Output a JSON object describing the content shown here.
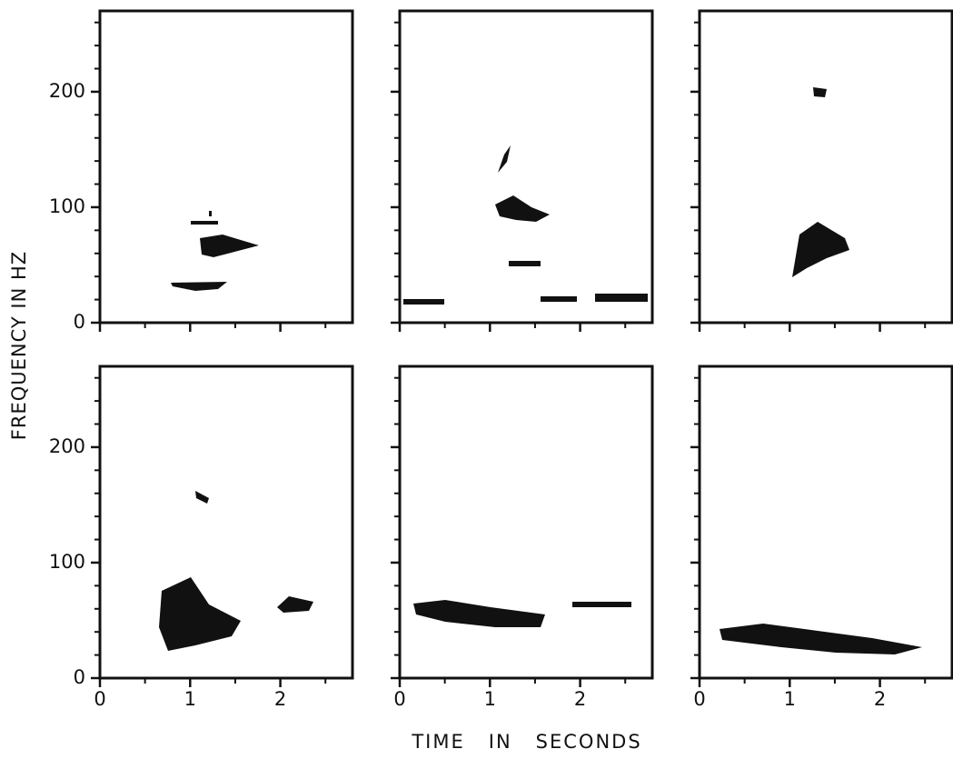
{
  "ylabel": "FREQUENCY IN HZ",
  "xlabel": "TIME   IN   SECONDS",
  "chart_data": [
    {
      "type": "spectrogram",
      "xlim": [
        0,
        2.8
      ],
      "ylim": [
        0,
        270
      ],
      "xticks": [
        0,
        1,
        2
      ],
      "yticks": [
        0,
        100,
        200
      ],
      "yminorticks": [
        20,
        40,
        60,
        80,
        120,
        140,
        160,
        180,
        220,
        240,
        260
      ],
      "xminorticks": [
        0.5,
        1.5,
        2.5
      ]
    },
    {
      "type": "spectrogram",
      "xlim": [
        0,
        2.8
      ],
      "ylim": [
        0,
        270
      ],
      "xticks": [
        0,
        1,
        2
      ],
      "yticks": [
        0,
        100,
        200
      ],
      "yminorticks": [
        20,
        40,
        60,
        80,
        120,
        140,
        160,
        180,
        220,
        240,
        260
      ],
      "xminorticks": [
        0.5,
        1.5,
        2.5
      ]
    },
    {
      "type": "spectrogram",
      "xlim": [
        0,
        2.8
      ],
      "ylim": [
        0,
        270
      ],
      "xticks": [
        0,
        1,
        2
      ],
      "yticks": [
        0,
        100,
        200
      ],
      "yminorticks": [
        20,
        40,
        60,
        80,
        120,
        140,
        160,
        180,
        220,
        240,
        260
      ],
      "xminorticks": [
        0.5,
        1.5,
        2.5
      ]
    },
    {
      "type": "spectrogram",
      "xlim": [
        0,
        2.8
      ],
      "ylim": [
        0,
        270
      ],
      "xticks": [
        0,
        1,
        2
      ],
      "yticks": [
        0,
        100,
        200
      ],
      "yminorticks": [
        20,
        40,
        60,
        80,
        120,
        140,
        160,
        180,
        220,
        240,
        260
      ],
      "xminorticks": [
        0.5,
        1.5,
        2.5
      ]
    },
    {
      "type": "spectrogram",
      "xlim": [
        0,
        2.8
      ],
      "ylim": [
        0,
        270
      ],
      "xticks": [
        0,
        1,
        2
      ],
      "yticks": [
        0,
        100,
        200
      ],
      "yminorticks": [
        20,
        40,
        60,
        80,
        120,
        140,
        160,
        180,
        220,
        240,
        260
      ],
      "xminorticks": [
        0.5,
        1.5,
        2.5
      ]
    },
    {
      "type": "spectrogram",
      "xlim": [
        0,
        2.8
      ],
      "ylim": [
        0,
        270
      ],
      "xticks": [
        0,
        1,
        2
      ],
      "yticks": [
        0,
        100,
        200
      ],
      "yminorticks": [
        20,
        40,
        60,
        80,
        120,
        140,
        160,
        180,
        220,
        240,
        260
      ],
      "xminorticks": [
        0.5,
        1.5,
        2.5
      ]
    }
  ]
}
